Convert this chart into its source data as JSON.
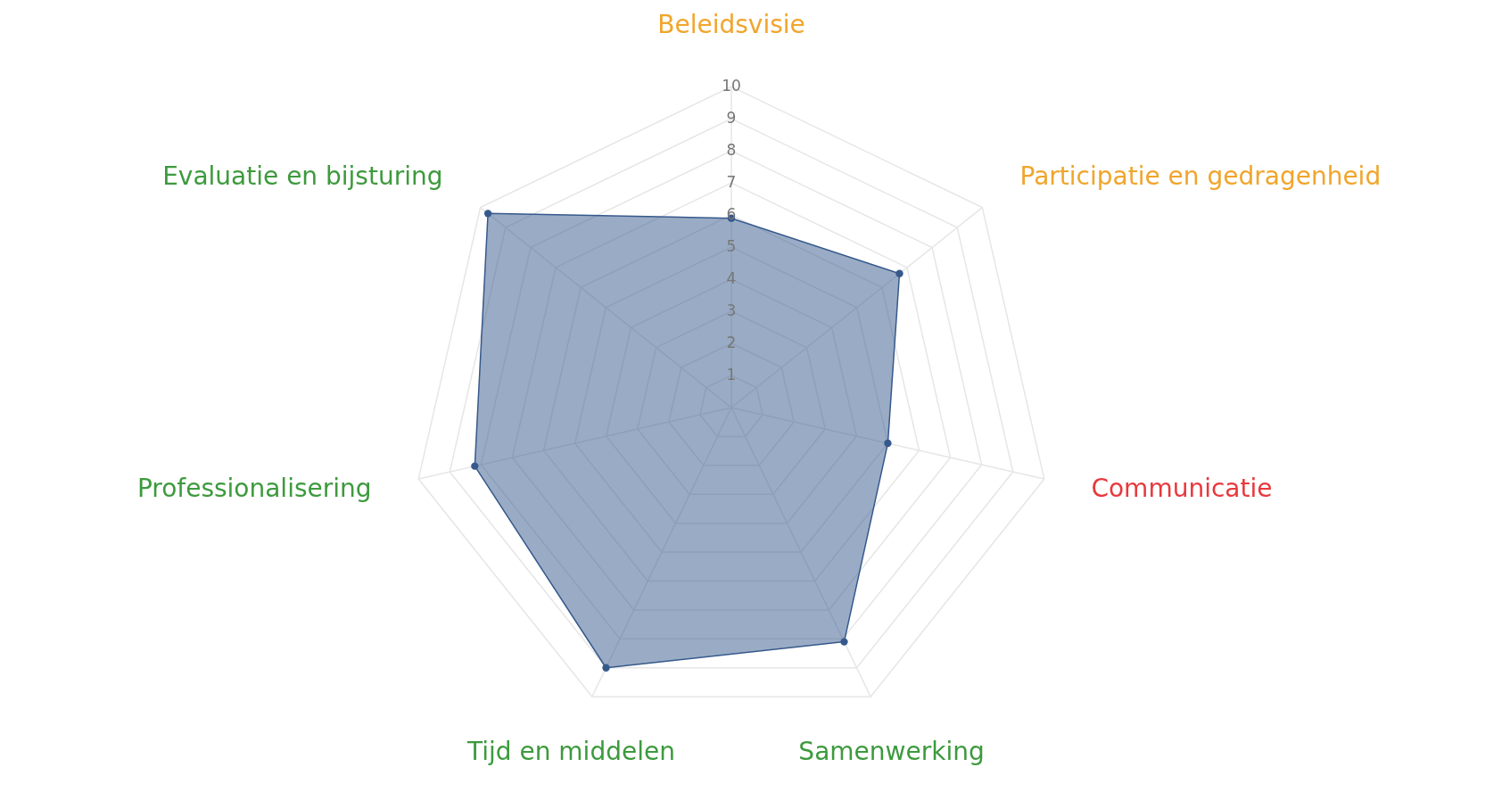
{
  "chart_data": {
    "type": "radar",
    "categories": [
      "Beleidsvisie",
      "Participatie en gedragenheid",
      "Communicatie",
      "Samenwerking",
      "Tijd en middelen",
      "Professionalisering",
      "Evaluatie en bijsturing"
    ],
    "colors": [
      "#f0a52c",
      "#f0a52c",
      "#e8383d",
      "#3d9a3d",
      "#3d9a3d",
      "#3d9a3d",
      "#3d9a3d"
    ],
    "series": [
      {
        "color": "#36598c",
        "values": [
          5.9,
          6.7,
          5.0,
          8.1,
          9.0,
          8.2,
          9.7
        ]
      }
    ],
    "ylim": [
      0,
      10
    ],
    "yticks": [
      1,
      2,
      3,
      4,
      5,
      6,
      7,
      8,
      9,
      10
    ],
    "grid": true,
    "marker": "circle"
  }
}
